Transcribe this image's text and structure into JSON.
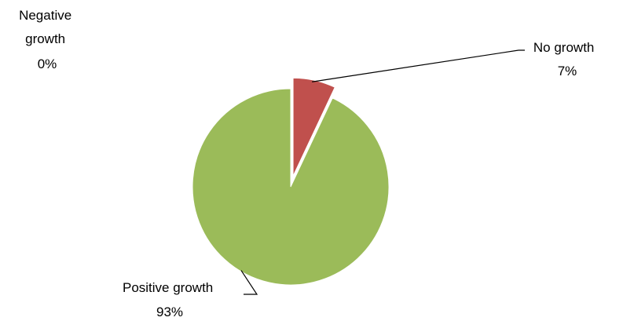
{
  "chart_data": {
    "type": "pie",
    "title": "",
    "slices": [
      {
        "label": "Negative growth",
        "value": 0,
        "value_label": "0%",
        "color": "#4f81bd"
      },
      {
        "label": "No growth",
        "value": 7,
        "value_label": "7%",
        "color": "#c0504d"
      },
      {
        "label": "Positive growth",
        "value": 93,
        "value_label": "93%",
        "color": "#9bbb59"
      }
    ],
    "exploded": true,
    "legend": "none"
  }
}
